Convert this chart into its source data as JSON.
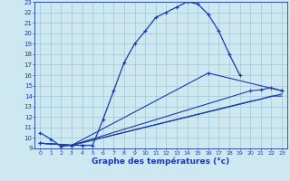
{
  "xlabel": "Graphe des températures (°c)",
  "bg_color": "#cde8f0",
  "grid_color": "#9fc8d8",
  "line_color": "#1a3aaa",
  "xlim": [
    -0.5,
    23.5
  ],
  "ylim": [
    9,
    23
  ],
  "xticks": [
    0,
    1,
    2,
    3,
    4,
    5,
    6,
    7,
    8,
    9,
    10,
    11,
    12,
    13,
    14,
    15,
    16,
    17,
    18,
    19,
    20,
    21,
    22,
    23
  ],
  "yticks": [
    9,
    10,
    11,
    12,
    13,
    14,
    15,
    16,
    17,
    18,
    19,
    20,
    21,
    22,
    23
  ],
  "series": [
    {
      "x": [
        0,
        1,
        2,
        3,
        4,
        5,
        6,
        7,
        8,
        9,
        10,
        11,
        12,
        13,
        14,
        15,
        16,
        17,
        18,
        19
      ],
      "y": [
        10.5,
        9.9,
        9.2,
        9.3,
        9.3,
        9.3,
        11.8,
        14.5,
        17.2,
        19.0,
        20.2,
        21.5,
        22.0,
        22.5,
        23.0,
        22.8,
        21.8,
        20.2,
        18.0,
        16.0
      ],
      "marker": true
    },
    {
      "x": [
        0,
        3,
        23
      ],
      "y": [
        9.5,
        9.3,
        14.2
      ],
      "marker": false
    },
    {
      "x": [
        0,
        3,
        20,
        21,
        22,
        23
      ],
      "y": [
        9.5,
        9.3,
        14.5,
        14.6,
        14.8,
        14.5
      ],
      "marker": true
    },
    {
      "x": [
        0,
        3,
        20,
        21,
        22,
        23
      ],
      "y": [
        9.5,
        9.3,
        13.5,
        13.7,
        14.0,
        14.0
      ],
      "marker": false
    },
    {
      "x": [
        0,
        3,
        16,
        23
      ],
      "y": [
        9.5,
        9.3,
        16.2,
        14.5
      ],
      "marker": true
    }
  ]
}
